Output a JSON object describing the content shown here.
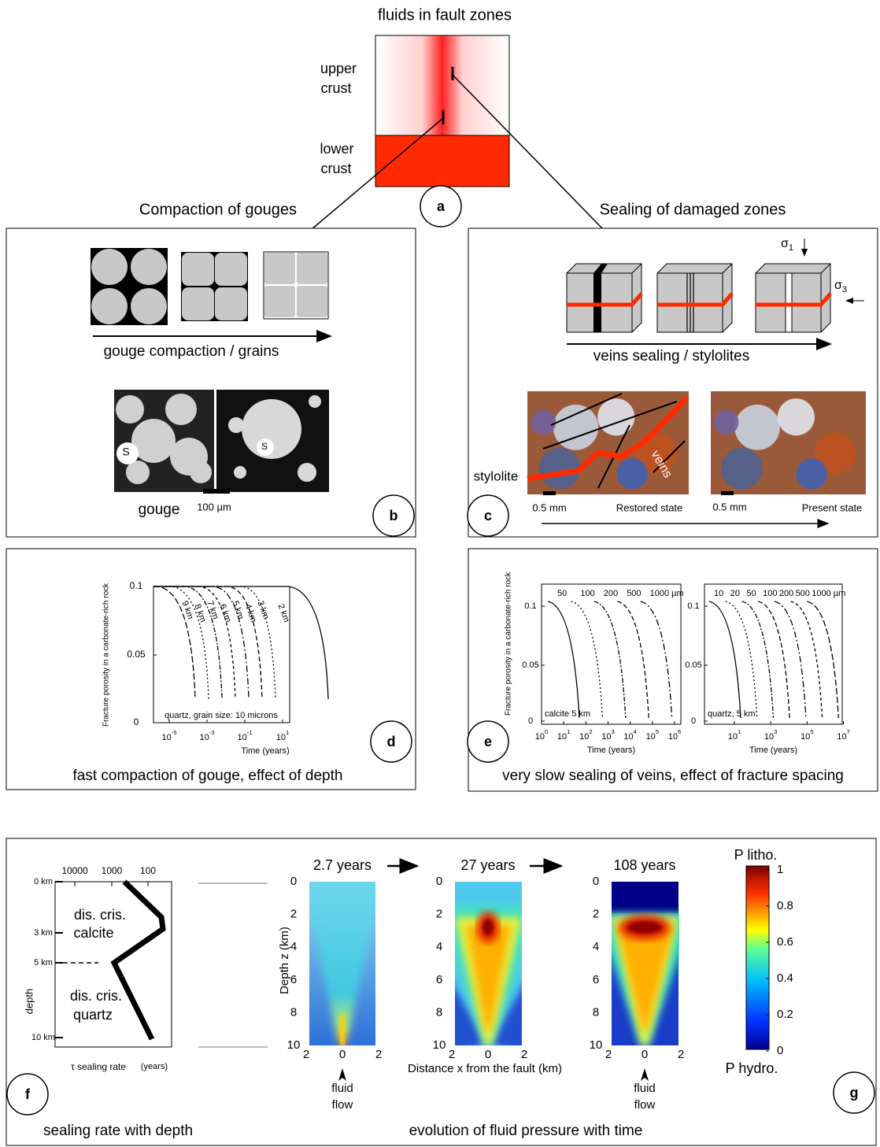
{
  "panel_a": {
    "title": "fluids in fault zones",
    "upper": [
      "upper",
      "crust"
    ],
    "lower": [
      "lower",
      "crust"
    ],
    "letter": "a"
  },
  "panel_b": {
    "title": "Compaction of gouges",
    "arrow_label": "gouge compaction / grains",
    "grain_marks": [
      "S",
      "S"
    ],
    "image_label": "gouge",
    "scale_bar": "100 µm",
    "letter": "b"
  },
  "panel_c": {
    "title": "Sealing of damaged zones",
    "sigma_1": {
      "symbol": "σ",
      "sub": "1"
    },
    "sigma_3": {
      "symbol": "σ",
      "sub": "3"
    },
    "arrow_label": "veins sealing / stylolites",
    "stylolite": "stylolite",
    "veins": "veins",
    "scale_left": "0.5 mm",
    "state_left": "Restored state",
    "scale_right": "0.5 mm",
    "state_right": "Present state",
    "letter": "c"
  },
  "panel_d": {
    "y_label": "Fracture porosity in a carbonate-rich rock",
    "yticks": [
      "0.1",
      "0.05",
      "0"
    ],
    "xticks": [
      {
        "base": "10",
        "exp": "-5"
      },
      {
        "base": "10",
        "exp": "-3"
      },
      {
        "base": "10",
        "exp": "-1"
      },
      {
        "base": "10",
        "exp": "1"
      }
    ],
    "x_label": "Time (years)",
    "curve_labels": [
      "9 km",
      "8 km",
      "7 km",
      "6 km",
      "5 km",
      "4 km",
      "3 km",
      "2 km"
    ],
    "note": "quartz, grain size: 10 microns",
    "caption": "fast compaction of gouge, effect of depth",
    "letter": "d"
  },
  "panel_e": {
    "plots": [
      {
        "y_label": "Fracture porosity in a carbonate-rich rock",
        "yticks": [
          "0.1",
          "0.05",
          "0"
        ],
        "xticks": [
          {
            "base": "10",
            "exp": "0"
          },
          {
            "base": "10",
            "exp": "1"
          },
          {
            "base": "10",
            "exp": "2"
          },
          {
            "base": "10",
            "exp": "3"
          },
          {
            "base": "10",
            "exp": "4"
          },
          {
            "base": "10",
            "exp": "5"
          },
          {
            "base": "10",
            "exp": "6"
          }
        ],
        "x_label": "Time (years)",
        "curve_labels": [
          "50",
          "100",
          "200",
          "500",
          "1000 µm"
        ],
        "note": "calcite 5 km"
      },
      {
        "yticks": [
          "0.1",
          "0.05",
          "0"
        ],
        "xticks": [
          {
            "base": "10",
            "exp": "1"
          },
          {
            "base": "10",
            "exp": "3"
          },
          {
            "base": "10",
            "exp": "5"
          },
          {
            "base": "10",
            "exp": "7"
          }
        ],
        "x_label": "Time (years)",
        "curve_labels": [
          "10",
          "20",
          "50",
          "100",
          "200",
          "500",
          "1000 µm"
        ],
        "note": "quartz, 5 km"
      }
    ],
    "caption": "very slow sealing of veins, effect of fracture spacing",
    "letter": "e"
  },
  "panel_f": {
    "xticks": [
      "10000",
      "1000",
      "100"
    ],
    "depth_ticks": [
      "0 km",
      "3 km",
      "5 km",
      "10 km"
    ],
    "zone_upper": [
      "dis. cris.",
      "calcite"
    ],
    "zone_lower": [
      "dis. cris.",
      "quartz"
    ],
    "y_label": "depth",
    "x_label": "τ sealing rate",
    "x_unit": "(years)",
    "caption": "sealing rate with depth",
    "letter": "f"
  },
  "panel_g": {
    "times": [
      "2.7 years",
      "27 years",
      "108 years"
    ],
    "yticks": [
      "0",
      "2",
      "4",
      "6",
      "8",
      "10"
    ],
    "xticks": [
      "2",
      "0",
      "2"
    ],
    "y_label": "Depth z (km)",
    "x_label": "Distance x from the fault (km)",
    "flow_label": [
      "fluid",
      "flow"
    ],
    "colorbar": {
      "top": "P litho.",
      "bottom": "P hydro.",
      "ticks": [
        "1",
        "0.8",
        "0.6",
        "0.4",
        "0.2",
        "0"
      ]
    },
    "caption": "evolution of fluid pressure with time",
    "letter": "g"
  }
}
